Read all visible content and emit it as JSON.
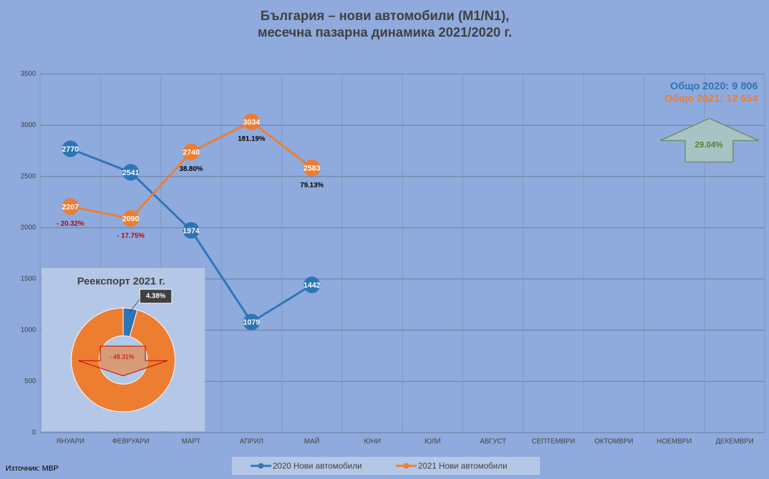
{
  "chart_data": [
    {
      "type": "line",
      "title": [
        "България – нови автомобили (M1/N1),",
        "месечна пазарна динамика 2021/2020 г."
      ],
      "categories": [
        "ЯНУАРИ",
        "ФЕВРУАРИ",
        "МАРТ",
        "АПРИЛ",
        "МАЙ",
        "ЮНИ",
        "ЮЛИ",
        "АВГУСТ",
        "СЕПТЕМВРИ",
        "ОКТОМВРИ",
        "НОЕМВРИ",
        "ДЕКЕМВРИ"
      ],
      "series": [
        {
          "name": "2020 Нови автомобили",
          "color": "#2e75b6",
          "values": [
            2770,
            2541,
            1974,
            1079,
            1442,
            null,
            null,
            null,
            null,
            null,
            null,
            null
          ]
        },
        {
          "name": "2021 Нови автомобили",
          "color": "#ed7d31",
          "values": [
            2207,
            2090,
            2740,
            3034,
            2583,
            null,
            null,
            null,
            null,
            null,
            null,
            null
          ]
        }
      ],
      "annotations": [
        {
          "text": "- 20.32%",
          "color": "#c00000"
        },
        {
          "text": "- 17.75%",
          "color": "#c00000"
        },
        {
          "text": "38.80%",
          "color": "#000000"
        },
        {
          "text": "181.19%",
          "color": "#000000"
        },
        {
          "text": "79.13%",
          "color": "#000000"
        }
      ],
      "totals": [
        "Общо 2020: 9 806",
        "Общо 2021: 12 654"
      ],
      "change": "29.04%",
      "ylim": [
        0,
        3500
      ],
      "yticks": [
        0,
        500,
        1000,
        1500,
        2000,
        2500,
        3000,
        3500
      ],
      "grid": true,
      "legend": "bottom"
    },
    {
      "type": "pie",
      "title": "Реекспорт 2021 г.",
      "values": [
        4.38,
        95.62
      ],
      "value_labels": [
        "4.38%",
        null
      ],
      "colors": [
        "#2e75b6",
        "#ed7d31"
      ],
      "annotation": "- 48.31%"
    }
  ],
  "source": "Източник: МВР"
}
